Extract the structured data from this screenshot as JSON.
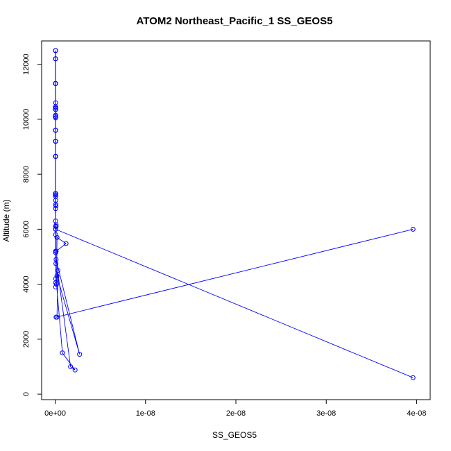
{
  "chart_data": {
    "type": "line",
    "title": "ATOM2 Northeast_Pacific_1 SS_GEOS5",
    "xlabel": "SS_GEOS5",
    "ylabel": "Altitude (m)",
    "xlim": [
      -1.5e-09,
      4.15e-08
    ],
    "ylim": [
      -200,
      12850
    ],
    "xticks": [
      0,
      1e-08,
      2e-08,
      3e-08,
      4e-08
    ],
    "xtick_labels": [
      "0e+00",
      "1e-08",
      "2e-08",
      "3e-08",
      "4e-08"
    ],
    "yticks": [
      0,
      2000,
      4000,
      6000,
      8000,
      10000,
      12000
    ],
    "ytick_labels": [
      "0",
      "2000",
      "4000",
      "6000",
      "8000",
      "10000",
      "12000"
    ],
    "grid": false,
    "series": [
      {
        "color": "#0000ff",
        "marker": "open-circle",
        "x": [
          3.96e-08,
          1e-10,
          2e-10,
          3e-10,
          2e-10,
          2.7e-09,
          1e-10,
          1.7e-09,
          2.2e-09,
          8e-10,
          1.5e-10,
          2e-10,
          1.2e-09,
          1e-10,
          8e-11,
          1e-10,
          1e-10,
          5e-11,
          8e-11,
          5e-11,
          3e-11,
          5e-11,
          5e-11,
          5e-11,
          5e-11,
          5e-11,
          5e-11,
          5e-11,
          5e-11,
          5e-11,
          5e-11,
          5e-11,
          5e-11,
          5e-11,
          5e-11,
          5e-11,
          5e-11,
          5e-11,
          5e-11,
          5e-11,
          5e-11,
          5e-11,
          5e-11,
          5e-11,
          5e-11,
          5e-11,
          5e-11,
          5e-11,
          5e-11,
          5e-11,
          5e-11,
          3e-11,
          3e-11,
          3e-11,
          3e-11,
          3e-11,
          3e-11,
          3e-11,
          3e-11,
          3e-11,
          3e-11,
          3e-11,
          3e-11,
          5e-11,
          3.96e-08
        ],
        "y": [
          6000,
          2800,
          2800,
          4500,
          4300,
          1450,
          4900,
          1000,
          880,
          1500,
          4000,
          5700,
          5480,
          5200,
          4750,
          6100,
          6150,
          6300,
          6850,
          7200,
          7300,
          8650,
          9200,
          9600,
          10050,
          10150,
          10350,
          10450,
          10600,
          11300,
          12200,
          12500,
          11300,
          10400,
          10100,
          9200,
          8650,
          7250,
          6900,
          6750,
          6100,
          5800,
          5150,
          4050,
          3900,
          4200,
          5200,
          6000,
          7050,
          7300,
          8650,
          9200,
          10100,
          10450,
          11300,
          12200,
          12500,
          11300,
          10400,
          10100,
          9600,
          8650,
          7250,
          6000,
          600
        ]
      }
    ]
  }
}
